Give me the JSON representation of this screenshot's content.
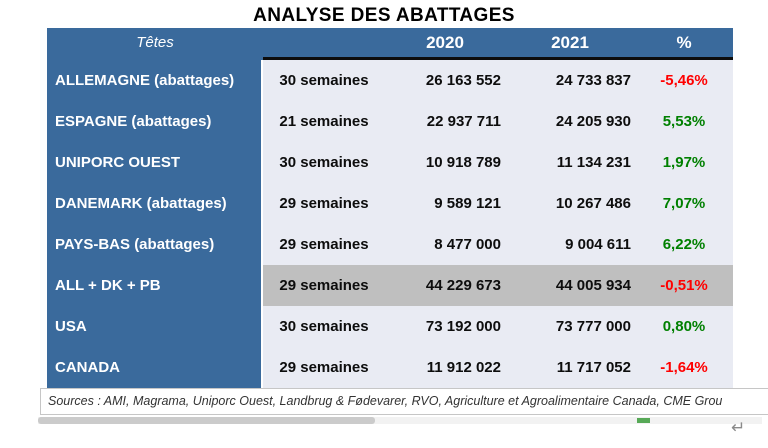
{
  "title": "ANALYSE DES ABATTAGES",
  "table": {
    "header": {
      "tetes": "Têtes",
      "weeks": "",
      "y2020": "2020",
      "y2021": "2021",
      "pct": "%"
    },
    "rows": [
      {
        "label": "ALLEMAGNE (abattages)",
        "weeks": "30 semaines",
        "y2020": "26 163 552",
        "y2021": "24 733 837",
        "pct": "-5,46%",
        "trend": "negative",
        "shaded": false
      },
      {
        "label": "ESPAGNE (abattages)",
        "weeks": "21 semaines",
        "y2020": "22 937 711",
        "y2021": "24 205 930",
        "pct": "5,53%",
        "trend": "positive",
        "shaded": false
      },
      {
        "label": "UNIPORC OUEST",
        "weeks": "30 semaines",
        "y2020": "10 918 789",
        "y2021": "11 134 231",
        "pct": "1,97%",
        "trend": "positive",
        "shaded": false
      },
      {
        "label": "DANEMARK (abattages)",
        "weeks": "29 semaines",
        "y2020": "9 589 121",
        "y2021": "10 267 486",
        "pct": "7,07%",
        "trend": "positive",
        "shaded": false
      },
      {
        "label": "PAYS-BAS (abattages)",
        "weeks": "29 semaines",
        "y2020": "8 477 000",
        "y2021": "9 004 611",
        "pct": "6,22%",
        "trend": "positive",
        "shaded": false
      },
      {
        "label": "ALL + DK + PB",
        "weeks": "29 semaines",
        "y2020": "44 229 673",
        "y2021": "44 005 934",
        "pct": "-0,51%",
        "trend": "negative",
        "shaded": true
      },
      {
        "label": "USA",
        "weeks": "30 semaines",
        "y2020": "73 192 000",
        "y2021": "73 777 000",
        "pct": "0,80%",
        "trend": "positive",
        "shaded": false
      },
      {
        "label": "CANADA",
        "weeks": "29 semaines",
        "y2020": "11 912 022",
        "y2021": "11 717 052",
        "pct": "-1,64%",
        "trend": "negative",
        "shaded": false
      }
    ]
  },
  "footer": {
    "sources": "Sources : AMI, Magrama, Uniporc Ouest, Landbrug & Fødevarer, RVO, Agriculture et Agroalimentaire Canada, CME Grou",
    "return_glyph": "↵"
  },
  "colors": {
    "header_blue": "#3a6a9c",
    "row_light": "#e9ebf3",
    "row_shaded": "#bfbfbf",
    "positive": "#008000",
    "negative": "#ff0000"
  }
}
